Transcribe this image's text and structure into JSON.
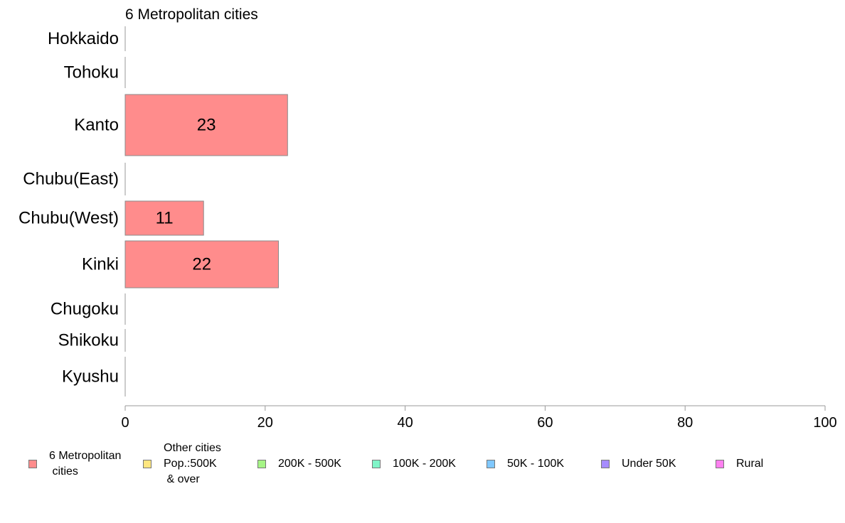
{
  "chart_data": {
    "type": "bar",
    "orientation": "horizontal",
    "title": "6 Metropolitan cities",
    "categories": [
      "Hokkaido",
      "Tohoku",
      "Kanto",
      "Chubu(East)",
      "Chubu(West)",
      "Kinki",
      "Chugoku",
      "Shikoku",
      "Kyushu"
    ],
    "series": [
      {
        "name": "6 Metropolitan\n cities",
        "color": "#ff8c8c",
        "values": [
          0,
          0,
          23.2,
          0,
          11.2,
          21.9,
          0,
          0,
          0
        ],
        "data_labels": [
          "",
          "",
          "23",
          "",
          "11",
          "22",
          "",
          "",
          ""
        ]
      }
    ],
    "xlim": [
      0,
      100
    ],
    "xticks": [
      "0",
      "20",
      "40",
      "60",
      "80",
      "100"
    ],
    "grid": false,
    "legend_position": "bottom",
    "legend": [
      {
        "label": "6 Metropolitan\n cities",
        "color": "#ff8c8c"
      },
      {
        "label": "Other cities\nPop.:500K\n & over",
        "color": "#ffe680"
      },
      {
        "label": "200K - 500K",
        "color": "#a6f586"
      },
      {
        "label": "100K - 200K",
        "color": "#80f5c8"
      },
      {
        "label": "50K - 100K",
        "color": "#80c8ff"
      },
      {
        "label": "Under 50K",
        "color": "#a68cff"
      },
      {
        "label": "Rural",
        "color": "#ff80f0"
      }
    ]
  }
}
